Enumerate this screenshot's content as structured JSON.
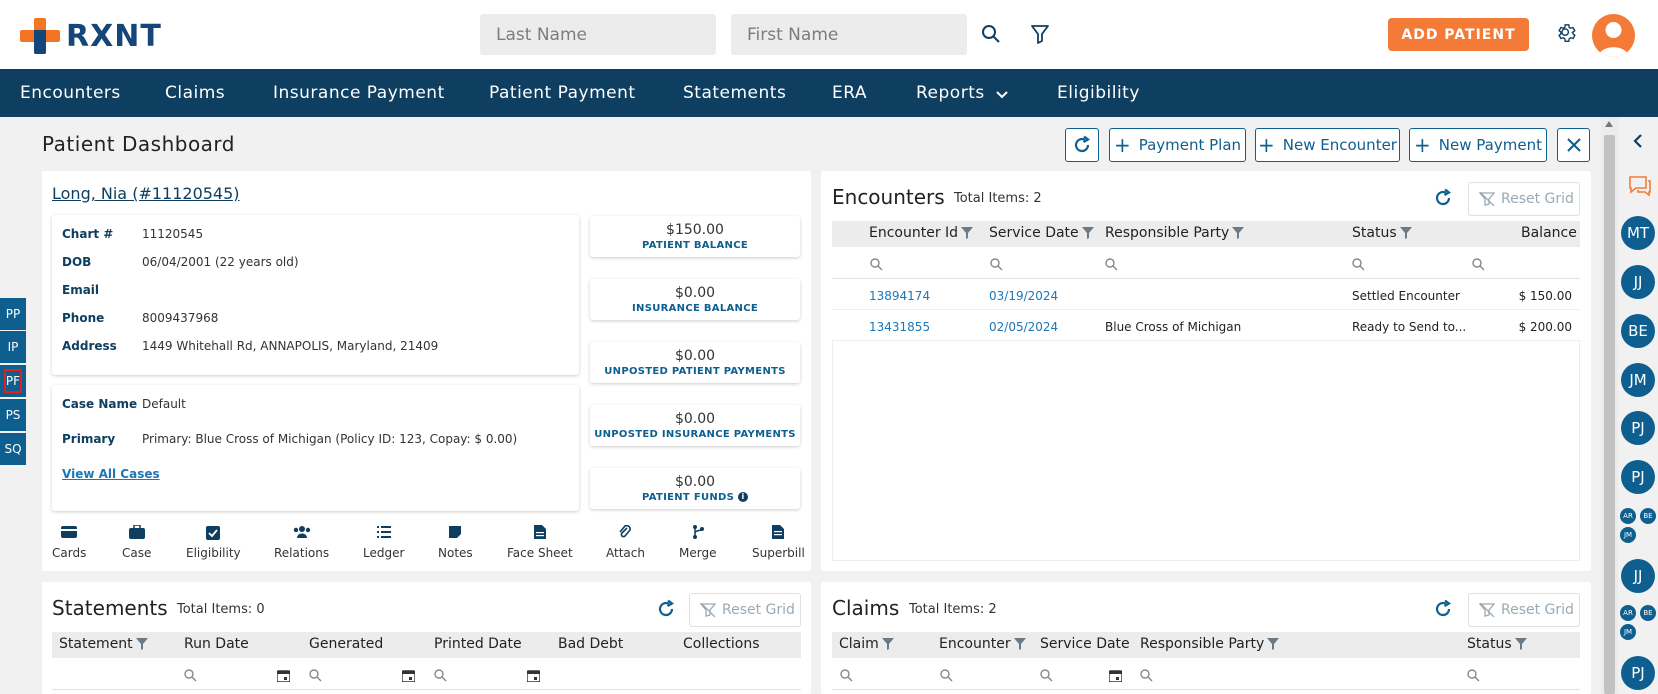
{
  "header": {
    "logo_text": "RXNT",
    "last_name_placeholder": "Last Name",
    "first_name_placeholder": "First Name",
    "add_patient_label": "ADD PATIENT",
    "accent_color": "#f37a37",
    "brand_color": "#0e3e60"
  },
  "nav": {
    "items": [
      "Encounters",
      "Claims",
      "Insurance Payment",
      "Patient Payment",
      "Statements",
      "ERA",
      "Reports",
      "Eligibility"
    ]
  },
  "side_tabs": [
    "PP",
    "IP",
    "PF",
    "PS",
    "SQ"
  ],
  "right_rail": {
    "avatars": [
      "MT",
      "JJ",
      "BE",
      "JM",
      "PJ",
      "PJ",
      "JJ",
      "PJ"
    ],
    "mini_group": [
      "AR",
      "BE",
      "JM"
    ]
  },
  "dashboard": {
    "title": "Patient Dashboard",
    "buttons": {
      "payment_plan": "Payment Plan",
      "new_encounter": "New Encounter",
      "new_payment": "New Payment"
    }
  },
  "patient": {
    "name_link": "Long, Nia (#11120545)",
    "fields": [
      {
        "label": "Chart #",
        "value": "11120545"
      },
      {
        "label": "DOB",
        "value": "06/04/2001 (22 years old)"
      },
      {
        "label": "Email",
        "value": ""
      },
      {
        "label": "Phone",
        "value": "8009437968"
      },
      {
        "label": "Address",
        "value": "1449 Whitehall Rd, ANNAPOLIS, Maryland, 21409"
      }
    ],
    "case_name_label": "Case Name",
    "case_name_value": "Default",
    "primary_label": "Primary",
    "primary_value": "Primary: Blue Cross of Michigan (Policy ID: 123, Copay: $ 0.00)",
    "view_all_cases": "View All Cases",
    "balances": [
      {
        "amount": "$150.00",
        "label": "PATIENT BALANCE"
      },
      {
        "amount": "$0.00",
        "label": "INSURANCE BALANCE"
      },
      {
        "amount": "$0.00",
        "label": "UNPOSTED PATIENT PAYMENTS"
      },
      {
        "amount": "$0.00",
        "label": "UNPOSTED INSURANCE PAYMENTS"
      },
      {
        "amount": "$0.00",
        "label": "PATIENT FUNDS"
      }
    ],
    "actions": [
      "Cards",
      "Case",
      "Eligibility",
      "Relations",
      "Ledger",
      "Notes",
      "Face Sheet",
      "Attach",
      "Merge",
      "Superbill"
    ]
  },
  "encounters": {
    "title": "Encounters",
    "total": "Total Items: 2",
    "reset": "Reset Grid",
    "columns": [
      "Encounter Id",
      "Service Date",
      "Responsible Party",
      "Status",
      "Balance"
    ],
    "rows": [
      {
        "id": "13894174",
        "date": "03/19/2024",
        "party": "",
        "status": "Settled Encounter",
        "balance": "$ 150.00"
      },
      {
        "id": "13431855",
        "date": "02/05/2024",
        "party": "Blue Cross of Michigan",
        "status": "Ready to Send to...",
        "balance": "$ 200.00"
      }
    ]
  },
  "statements": {
    "title": "Statements",
    "total": "Total Items: 0",
    "reset": "Reset Grid",
    "columns": [
      "Statement",
      "Run Date",
      "Generated",
      "Printed Date",
      "Bad Debt",
      "Collections"
    ]
  },
  "claims": {
    "title": "Claims",
    "total": "Total Items: 2",
    "reset": "Reset Grid",
    "columns": [
      "Claim",
      "Encounter",
      "Service Date",
      "Responsible Party",
      "Status"
    ]
  }
}
